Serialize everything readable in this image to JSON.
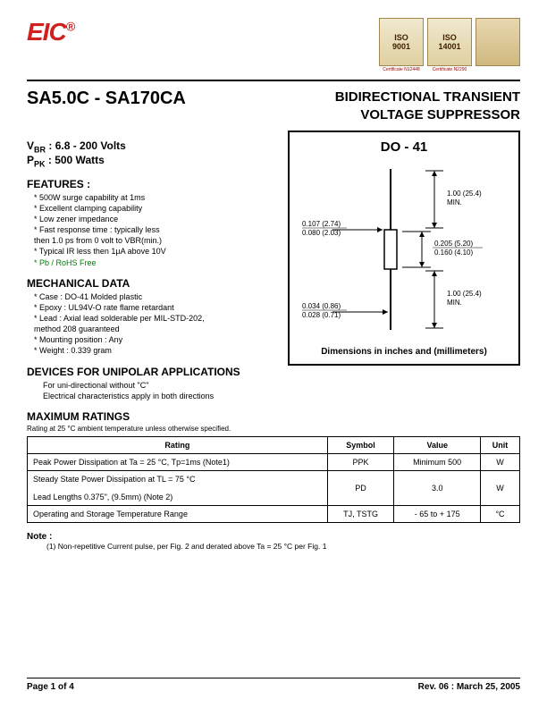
{
  "header": {
    "logo_text": "EIC",
    "logo_reg": "®",
    "certs": [
      {
        "line1": "ISO",
        "line2": "9001",
        "caption": "Certificate N12448"
      },
      {
        "line1": "ISO",
        "line2": "14001",
        "caption": "Certificate N2290"
      },
      {
        "line1": "",
        "line2": "",
        "caption": ""
      }
    ]
  },
  "title": {
    "part_range": "SA5.0C - SA170CA",
    "product_name_l1": "BIDIRECTIONAL TRANSIENT",
    "product_name_l2": "VOLTAGE SUPPRESSOR"
  },
  "headline_specs": {
    "vbr_label": "VBR",
    "vbr_value": ": 6.8 - 200 Volts",
    "ppk_label": "PPK",
    "ppk_value": ": 500 Watts"
  },
  "features": {
    "heading": "FEATURES :",
    "items": [
      "500W surge capability at 1ms",
      "Excellent clamping capability",
      "Low zener impedance",
      "Fast response time : typically less",
      "then 1.0 ps from 0 volt to VBR(min.)",
      "Typical IR less then 1µA above 10V",
      "Pb / RoHS Free"
    ],
    "green_index": 6,
    "continuation_indices": [
      4
    ]
  },
  "mechanical": {
    "heading": "MECHANICAL DATA",
    "items": [
      "Case : DO-41 Molded plastic",
      "Epoxy : UL94V-O rate flame retardant",
      "Lead : Axial lead solderable per MIL-STD-202,",
      "           method 208 guaranteed",
      "Mounting position : Any",
      "Weight :  0.339 gram"
    ],
    "continuation_indices": [
      3
    ]
  },
  "unipolar": {
    "heading": "DEVICES FOR UNIPOLAR APPLICATIONS",
    "line1": "For uni-directional without \"C\"",
    "line2": "Electrical characteristics apply in both directions"
  },
  "package": {
    "title": "DO - 41",
    "caption": "Dimensions in inches and (millimeters)",
    "dims": {
      "lead_len": "1.00 (25.4)\nMIN.",
      "body_dia_top": "0.107 (2.74)",
      "body_dia_bot": "0.080 (2.03)",
      "body_len_top": "0.205 (5.20)",
      "body_len_bot": "0.160 (4.10)",
      "lead_dia_top": "0.034 (0.86)",
      "lead_dia_bot": "0.028 (0.71)"
    }
  },
  "max_ratings": {
    "heading": "MAXIMUM RATINGS",
    "note": "Rating at 25 °C ambient temperature unless otherwise specified.",
    "columns": [
      "Rating",
      "Symbol",
      "Value",
      "Unit"
    ],
    "rows": [
      {
        "rating": "Peak Power Dissipation at Ta = 25 °C, Tp=1ms (Note1)",
        "symbol": "PPK",
        "value": "Minimum 500",
        "unit": "W",
        "rowspan": 1
      },
      {
        "rating": "Steady State Power Dissipation at TL = 75 °C\n\nLead Lengths 0.375\", (9.5mm) (Note 2)",
        "symbol": "PD",
        "value": "3.0",
        "unit": "W",
        "rowspan": 1
      },
      {
        "rating": "Operating and Storage Temperature Range",
        "symbol": "TJ, TSTG",
        "value": "- 65 to + 175",
        "unit": "°C",
        "rowspan": 1
      }
    ]
  },
  "notes": {
    "heading": "Note :",
    "items": [
      "(1) Non-repetitive Current pulse, per Fig. 2 and derated above Ta = 25 °C per Fig. 1"
    ]
  },
  "footer": {
    "page": "Page 1 of 4",
    "rev": "Rev. 06 : March 25, 2005"
  },
  "style": {
    "accent_red": "#d02020",
    "green": "#008000",
    "border": "#000000",
    "bg": "#ffffff"
  }
}
